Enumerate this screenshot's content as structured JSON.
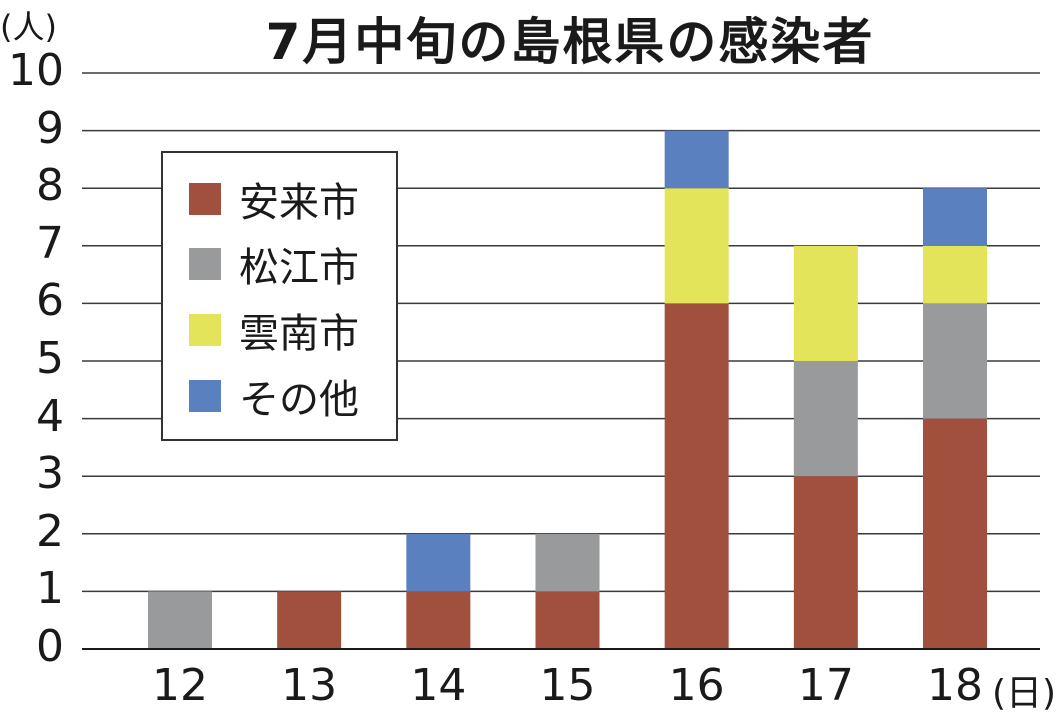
{
  "chart_data": {
    "type": "bar",
    "stacked": true,
    "title": "7月中旬の島根県の感染者",
    "ylabel": "(人)",
    "xlabel": "(日)",
    "ylim": [
      0,
      10
    ],
    "yticks": [
      "0",
      "1",
      "2",
      "3",
      "4",
      "5",
      "6",
      "7",
      "8",
      "9",
      "10"
    ],
    "categories": [
      "12",
      "13",
      "14",
      "15",
      "16",
      "17",
      "18"
    ],
    "series": [
      {
        "name": "安来市",
        "color": "#a1503e",
        "values": [
          0,
          1,
          1,
          1,
          6,
          3,
          4
        ]
      },
      {
        "name": "松江市",
        "color": "#999a9c",
        "values": [
          1,
          0,
          0,
          1,
          0,
          2,
          2
        ]
      },
      {
        "name": "雲南市",
        "color": "#e3e45a",
        "values": [
          0,
          0,
          0,
          0,
          2,
          2,
          1
        ]
      },
      {
        "name": "その他",
        "color": "#5b80bf",
        "values": [
          0,
          0,
          1,
          0,
          1,
          0,
          1
        ]
      }
    ],
    "grid": true,
    "legend_position": "upper-left"
  }
}
